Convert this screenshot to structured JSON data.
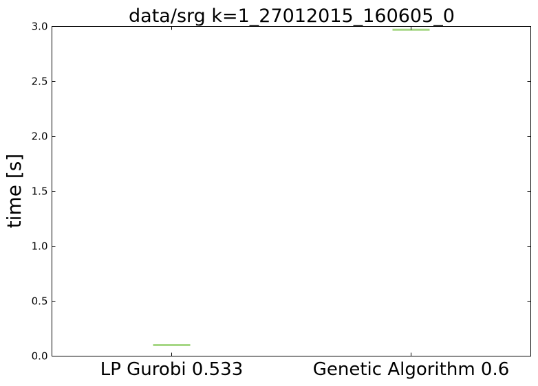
{
  "chart_data": {
    "type": "box",
    "title": "data/srg k=1_27012015_160605_0",
    "xlabel": "",
    "ylabel": "time [s]",
    "categories": [
      "LP Gurobi 0.533",
      "Genetic Algorithm 0.6"
    ],
    "values": [
      0.1,
      2.97
    ],
    "ylim": [
      0.0,
      3.0
    ],
    "yticks": [
      "0.0",
      "0.5",
      "1.0",
      "1.5",
      "2.0",
      "2.5",
      "3.0"
    ],
    "grid": false,
    "line_color": "#a6d785"
  }
}
